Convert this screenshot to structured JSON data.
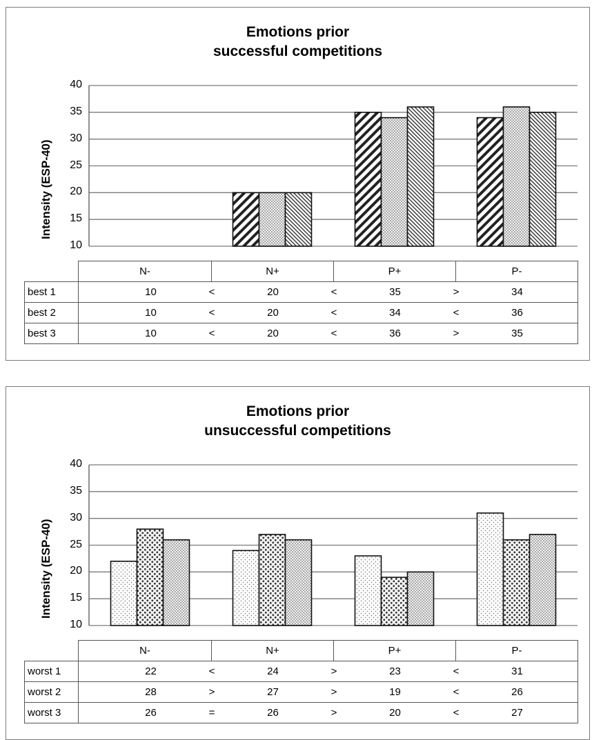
{
  "chart_data": [
    {
      "type": "bar",
      "title_lines": [
        "Emotions prior",
        "successful competitions"
      ],
      "ylabel": "Intensity (ESP-40)",
      "xlabel": "",
      "ylim": [
        10,
        40
      ],
      "yticks": [
        40,
        35,
        30,
        25,
        20,
        15,
        10
      ],
      "categories": [
        "N-",
        "N+",
        "P+",
        "P-"
      ],
      "series": [
        {
          "name": "best 1",
          "values": [
            10,
            20,
            35,
            34
          ],
          "pattern": "diag-bold"
        },
        {
          "name": "best 2",
          "values": [
            10,
            20,
            34,
            36
          ],
          "pattern": "dots-fine"
        },
        {
          "name": "best 3",
          "values": [
            10,
            20,
            36,
            35
          ],
          "pattern": "diag-fine"
        }
      ],
      "comparisons": [
        [
          "<",
          "<",
          ">"
        ],
        [
          "<",
          "<",
          "<"
        ],
        [
          "<",
          "<",
          ">"
        ]
      ]
    },
    {
      "type": "bar",
      "title_lines": [
        "Emotions prior",
        "unsuccessful competitions"
      ],
      "ylabel": "Intensity (ESP-40)",
      "xlabel": "",
      "ylim": [
        10,
        40
      ],
      "yticks": [
        40,
        35,
        30,
        25,
        20,
        15,
        10
      ],
      "categories": [
        "N-",
        "N+",
        "P+",
        "P-"
      ],
      "series": [
        {
          "name": "worst 1",
          "values": [
            22,
            24,
            23,
            31
          ],
          "pattern": "dots-light"
        },
        {
          "name": "worst 2",
          "values": [
            28,
            27,
            19,
            26
          ],
          "pattern": "dots-bold"
        },
        {
          "name": "worst 3",
          "values": [
            26,
            26,
            20,
            27
          ],
          "pattern": "dots-fine"
        }
      ],
      "comparisons": [
        [
          "<",
          ">",
          "<"
        ],
        [
          ">",
          ">",
          "<"
        ],
        [
          "=",
          ">",
          "<"
        ]
      ]
    }
  ]
}
